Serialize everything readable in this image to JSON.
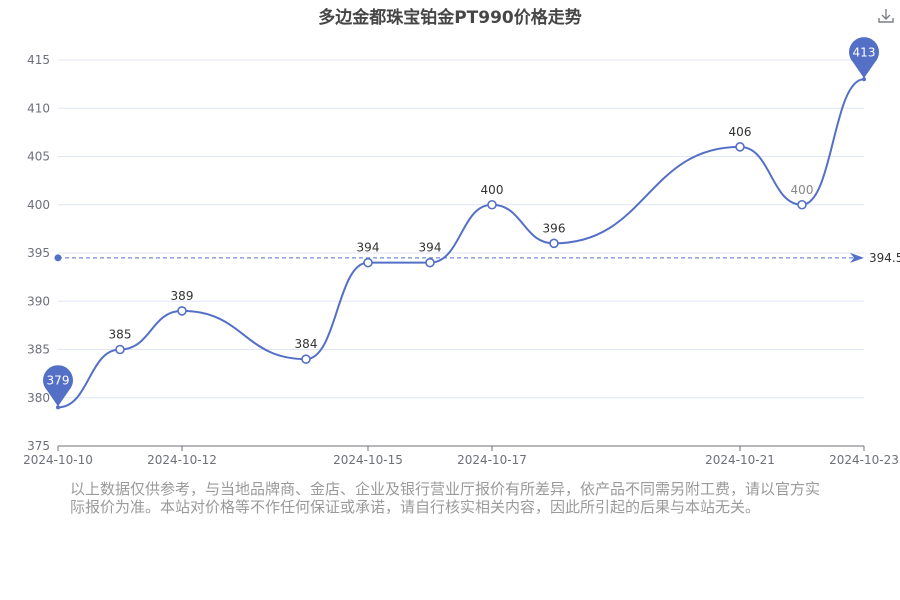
{
  "title": "多边金都珠宝铂金PT990价格走势",
  "toolbar": {
    "download_icon": "download-icon"
  },
  "disclaimer": "以上数据仅供参考，与当地品牌商、金店、企业及银行营业厅报价有所差异，依产品不同需另附工费，请以官方实际报价为准。本站对价格等不作任何保证或承诺，请自行核实相关内容，因此所引起的后果与本站无关。",
  "colors": {
    "line": "#5470c6",
    "point_fill": "#ffffff",
    "axis": "#6e7079",
    "grid": "#e0e6f1",
    "label": "#333333",
    "muted_label": "#888888"
  },
  "chart_data": {
    "type": "line",
    "x": [
      "2024-10-10",
      "2024-10-11",
      "2024-10-12",
      "2024-10-14",
      "2024-10-15",
      "2024-10-16",
      "2024-10-17",
      "2024-10-18",
      "2024-10-21",
      "2024-10-22",
      "2024-10-23"
    ],
    "x_tick_labels": [
      "2024-10-10",
      "2024-10-12",
      "2024-10-15",
      "2024-10-17",
      "2024-10-21",
      "2024-10-23"
    ],
    "values": [
      379,
      385,
      389,
      384,
      394,
      394,
      400,
      396,
      406,
      400,
      413
    ],
    "point_labels": [
      "",
      "385",
      "389",
      "384",
      "394",
      "394",
      "400",
      "396",
      "406",
      "400",
      ""
    ],
    "ylim": [
      375,
      415
    ],
    "y_ticks": [
      375,
      380,
      385,
      390,
      395,
      400,
      405,
      410,
      415
    ],
    "mark_points": [
      {
        "kind": "min",
        "label": "379",
        "index": 0
      },
      {
        "kind": "max",
        "label": "413",
        "index": 10
      }
    ],
    "mark_line": {
      "kind": "average",
      "value": 394.5,
      "label": "394.5"
    },
    "grid": true,
    "smooth": true,
    "legend": "none"
  }
}
